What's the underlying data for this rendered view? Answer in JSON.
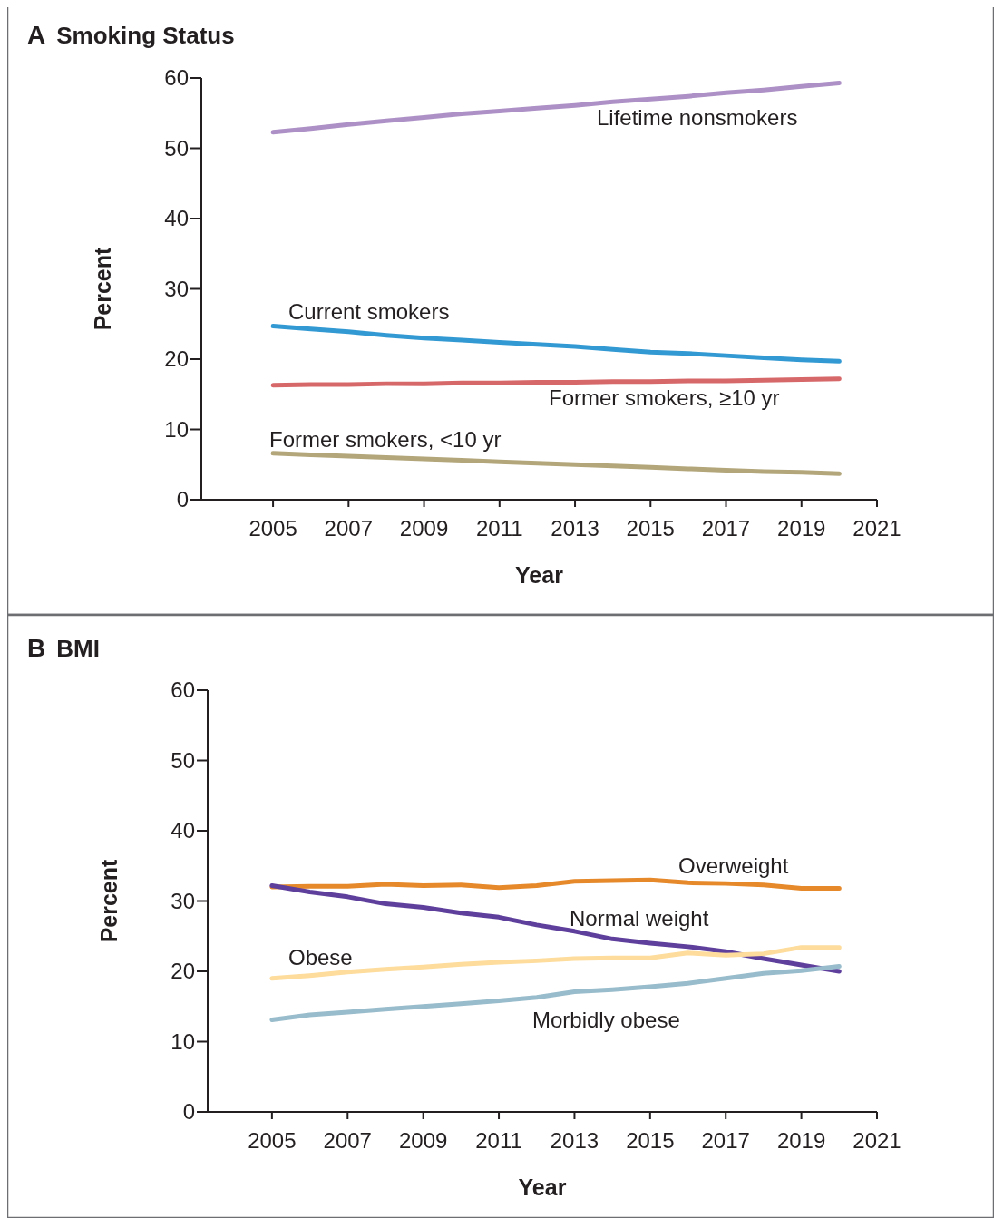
{
  "chart_data": [
    {
      "type": "line",
      "title": "A Smoking Status",
      "xlabel": "Year",
      "ylabel": "Percent",
      "x": [
        2005,
        2006,
        2007,
        2008,
        2009,
        2010,
        2011,
        2012,
        2013,
        2014,
        2015,
        2016,
        2017,
        2018,
        2019,
        2020
      ],
      "xlim": [
        2003.1,
        2021
      ],
      "xticks": [
        2005,
        2007,
        2009,
        2011,
        2013,
        2015,
        2017,
        2019,
        2021
      ],
      "ylim": [
        0,
        60
      ],
      "yticks": [
        0,
        10,
        20,
        30,
        40,
        50,
        60
      ],
      "series": [
        {
          "name": "Lifetime nonsmokers",
          "color": "#ad91c6",
          "values": [
            52.3,
            52.8,
            53.4,
            53.9,
            54.4,
            54.9,
            55.3,
            55.7,
            56.1,
            56.6,
            57.0,
            57.4,
            57.9,
            58.3,
            58.8,
            59.3
          ]
        },
        {
          "name": "Current smokers",
          "color": "#3399d2",
          "values": [
            24.7,
            24.3,
            23.9,
            23.4,
            23.0,
            22.7,
            22.4,
            22.1,
            21.8,
            21.4,
            21.0,
            20.8,
            20.5,
            20.2,
            19.9,
            19.7
          ]
        },
        {
          "name": "Former smokers, ≥10 yr",
          "color": "#d7686a",
          "values": [
            16.3,
            16.4,
            16.4,
            16.5,
            16.5,
            16.6,
            16.6,
            16.7,
            16.7,
            16.8,
            16.8,
            16.9,
            16.9,
            17.0,
            17.1,
            17.2
          ]
        },
        {
          "name": "Former smokers, <10 yr",
          "color": "#b2a67a",
          "values": [
            6.6,
            6.4,
            6.2,
            6.0,
            5.8,
            5.6,
            5.4,
            5.2,
            5.0,
            4.8,
            4.6,
            4.4,
            4.2,
            4.0,
            3.9,
            3.7
          ]
        }
      ]
    },
    {
      "type": "line",
      "title": "B BMI",
      "xlabel": "Year",
      "ylabel": "Percent",
      "x": [
        2005,
        2006,
        2007,
        2008,
        2009,
        2010,
        2011,
        2012,
        2013,
        2014,
        2015,
        2016,
        2017,
        2018,
        2019,
        2020
      ],
      "xlim": [
        2003.3,
        2021
      ],
      "xticks": [
        2005,
        2007,
        2009,
        2011,
        2013,
        2015,
        2017,
        2019,
        2021
      ],
      "ylim": [
        0,
        60
      ],
      "yticks": [
        0,
        10,
        20,
        30,
        40,
        50,
        60
      ],
      "series": [
        {
          "name": "Overweight",
          "color": "#e5892b",
          "values": [
            32.0,
            32.1,
            32.1,
            32.4,
            32.2,
            32.3,
            31.9,
            32.2,
            32.8,
            32.9,
            33.0,
            32.6,
            32.5,
            32.3,
            31.8,
            31.8
          ]
        },
        {
          "name": "Normal weight",
          "color": "#5e3f9c",
          "values": [
            32.2,
            31.3,
            30.6,
            29.6,
            29.1,
            28.3,
            27.7,
            26.6,
            25.7,
            24.6,
            24.0,
            23.5,
            22.8,
            21.8,
            20.9,
            20.0
          ]
        },
        {
          "name": "Obese",
          "color": "#fddc9c",
          "values": [
            19.0,
            19.4,
            19.9,
            20.3,
            20.6,
            21.0,
            21.3,
            21.5,
            21.8,
            21.9,
            21.9,
            22.6,
            22.3,
            22.5,
            23.4,
            23.4
          ]
        },
        {
          "name": "Morbidly obese",
          "color": "#98bccb",
          "values": [
            13.1,
            13.8,
            14.2,
            14.6,
            15.0,
            15.4,
            15.8,
            16.3,
            17.1,
            17.4,
            17.8,
            18.3,
            19.0,
            19.7,
            20.1,
            20.7
          ]
        }
      ]
    }
  ]
}
